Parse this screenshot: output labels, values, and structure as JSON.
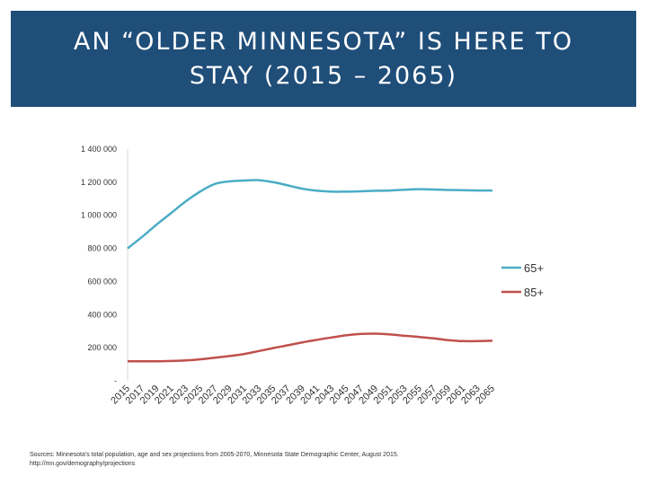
{
  "title": "AN “OLDER MINNESOTA” IS HERE TO STAY (2015 – 2065)",
  "source_line1": "Sources: Minnesota's total population, age and sex projections from 2005-2070, Minnesota State Demographic Center, August 2015.",
  "source_line2": "http://mn.gov/demography/projections",
  "colors": {
    "series_65": "#4bacc6",
    "series_85": "#c0504d",
    "header": "#1f4e79"
  },
  "chart_data": {
    "type": "line",
    "title": "",
    "xlabel": "",
    "ylabel": "",
    "x": [
      2015,
      2017,
      2019,
      2021,
      2023,
      2025,
      2027,
      2029,
      2031,
      2033,
      2035,
      2037,
      2039,
      2041,
      2043,
      2045,
      2047,
      2049,
      2051,
      2053,
      2055,
      2057,
      2059,
      2061,
      2063,
      2065
    ],
    "yticks": [
      0,
      200000,
      400000,
      600000,
      800000,
      1000000,
      1200000,
      1400000
    ],
    "ytick_labels": [
      "-",
      "200 000",
      "400 000",
      "600 000",
      "800 000",
      "1 000 000",
      "1 200 000",
      "1 400 000"
    ],
    "ylim": [
      0,
      1400000
    ],
    "legend_position": "right",
    "series": [
      {
        "name": "65+",
        "values": [
          800000,
          870000,
          945000,
          1015000,
          1085000,
          1145000,
          1190000,
          1205000,
          1210000,
          1212000,
          1200000,
          1180000,
          1160000,
          1148000,
          1143000,
          1143000,
          1145000,
          1148000,
          1150000,
          1155000,
          1158000,
          1156000,
          1153000,
          1152000,
          1150000,
          1150000
        ]
      },
      {
        "name": "85+",
        "values": [
          118000,
          118000,
          118000,
          120000,
          123000,
          130000,
          140000,
          150000,
          162000,
          180000,
          198000,
          215000,
          233000,
          248000,
          262000,
          275000,
          283000,
          285000,
          280000,
          272000,
          265000,
          256000,
          245000,
          240000,
          240000,
          242000
        ]
      }
    ]
  }
}
